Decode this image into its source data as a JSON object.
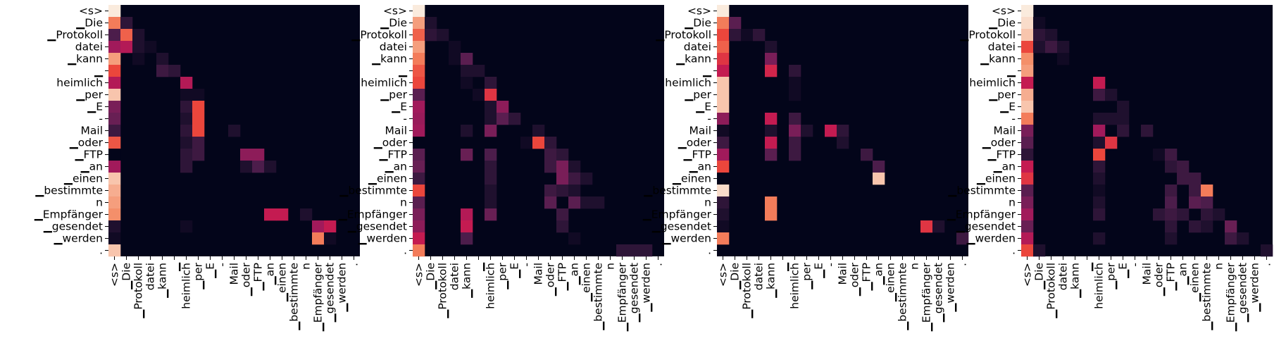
{
  "chart_data": {
    "type": "heatmap",
    "description_colormap": "rocket",
    "tokens": [
      "<s>",
      "▁Die",
      "▁Protokoll",
      "datei",
      "▁kann",
      "▁",
      "heimlich",
      "▁per",
      "▁E",
      "-",
      "Mail",
      "▁oder",
      "▁FTP",
      "▁an",
      "▁einen",
      "▁bestimmte",
      "n",
      "▁Empfänger",
      "▁gesendet",
      "▁werden",
      "."
    ],
    "x_tick_labels": [
      "<s>",
      "▁Die",
      "▁Protokoll",
      "datei",
      "▁kann",
      "▁",
      "heimlich",
      "▁per",
      "▁E",
      "-",
      "Mail",
      "▁oder",
      "▁FTP",
      "▁an",
      "▁einen",
      "▁bestimmte",
      "n",
      "▁Empfänger",
      "▁gesendet",
      "▁werden",
      "."
    ],
    "y_tick_labels": [
      "<s>",
      "▁Die",
      "▁Protokoll",
      "datei",
      "▁kann",
      "▁",
      "heimlich",
      "▁per",
      "▁E",
      "-",
      "Mail",
      "▁oder",
      "▁FTP",
      "▁an",
      "▁einen",
      "▁bestimmte",
      "n",
      "▁Empfänger",
      "▁gesendet",
      "▁werden",
      "."
    ],
    "panels": [
      {
        "cells": [
          [
            0,
            0,
            1.0
          ],
          [
            1,
            0,
            0.85
          ],
          [
            1,
            1,
            0.15
          ],
          [
            2,
            0,
            0.25
          ],
          [
            2,
            1,
            0.8
          ],
          [
            2,
            2,
            0.1
          ],
          [
            3,
            0,
            0.5
          ],
          [
            3,
            1,
            0.55
          ],
          [
            3,
            2,
            0.1
          ],
          [
            3,
            3,
            0.05
          ],
          [
            4,
            0,
            0.9
          ],
          [
            4,
            2,
            0.05
          ],
          [
            4,
            4,
            0.1
          ],
          [
            5,
            0,
            0.75
          ],
          [
            5,
            4,
            0.2
          ],
          [
            5,
            5,
            0.15
          ],
          [
            6,
            0,
            0.55
          ],
          [
            6,
            6,
            0.55
          ],
          [
            7,
            0,
            0.95
          ],
          [
            7,
            6,
            0.05
          ],
          [
            7,
            7,
            0.05
          ],
          [
            8,
            0,
            0.4
          ],
          [
            8,
            6,
            0.15
          ],
          [
            8,
            7,
            0.75
          ],
          [
            9,
            0,
            0.35
          ],
          [
            9,
            6,
            0.1
          ],
          [
            9,
            7,
            0.75
          ],
          [
            10,
            0,
            0.2
          ],
          [
            10,
            6,
            0.15
          ],
          [
            10,
            7,
            0.75
          ],
          [
            10,
            10,
            0.1
          ],
          [
            11,
            0,
            0.78
          ],
          [
            11,
            6,
            0.1
          ],
          [
            11,
            7,
            0.2
          ],
          [
            12,
            0,
            0.0
          ],
          [
            12,
            6,
            0.15
          ],
          [
            12,
            7,
            0.2
          ],
          [
            12,
            11,
            0.45
          ],
          [
            12,
            12,
            0.45
          ],
          [
            13,
            0,
            0.5
          ],
          [
            13,
            6,
            0.15
          ],
          [
            13,
            11,
            0.1
          ],
          [
            13,
            12,
            0.25
          ],
          [
            13,
            13,
            0.1
          ],
          [
            14,
            0,
            0.95
          ],
          [
            15,
            0,
            0.92
          ],
          [
            16,
            0,
            0.9
          ],
          [
            17,
            0,
            0.88
          ],
          [
            17,
            13,
            0.6
          ],
          [
            17,
            14,
            0.6
          ],
          [
            17,
            16,
            0.1
          ],
          [
            18,
            0,
            0.1
          ],
          [
            18,
            6,
            0.05
          ],
          [
            18,
            17,
            0.5
          ],
          [
            18,
            18,
            0.6
          ],
          [
            19,
            0,
            0.05
          ],
          [
            19,
            17,
            0.85
          ],
          [
            19,
            18,
            0.05
          ],
          [
            20,
            0,
            0.95
          ]
        ]
      },
      {
        "cells": [
          [
            0,
            0,
            1.0
          ],
          [
            1,
            0,
            0.9
          ],
          [
            1,
            1,
            0.1
          ],
          [
            2,
            0,
            0.8
          ],
          [
            2,
            1,
            0.15
          ],
          [
            2,
            2,
            0.1
          ],
          [
            3,
            0,
            0.9
          ],
          [
            3,
            3,
            0.05
          ],
          [
            4,
            0,
            0.85
          ],
          [
            4,
            3,
            0.05
          ],
          [
            4,
            4,
            0.3
          ],
          [
            5,
            0,
            0.78
          ],
          [
            5,
            4,
            0.1
          ],
          [
            5,
            5,
            0.1
          ],
          [
            6,
            0,
            0.75
          ],
          [
            6,
            4,
            0.05
          ],
          [
            6,
            6,
            0.15
          ],
          [
            7,
            0,
            0.3
          ],
          [
            7,
            5,
            0.05
          ],
          [
            7,
            6,
            0.7
          ],
          [
            8,
            0,
            0.5
          ],
          [
            8,
            6,
            0.1
          ],
          [
            8,
            7,
            0.45
          ],
          [
            9,
            0,
            0.48
          ],
          [
            9,
            6,
            0.1
          ],
          [
            9,
            7,
            0.3
          ],
          [
            9,
            8,
            0.15
          ],
          [
            10,
            0,
            0.5
          ],
          [
            10,
            4,
            0.1
          ],
          [
            10,
            6,
            0.4
          ],
          [
            10,
            10,
            0.1
          ],
          [
            11,
            0,
            0.0
          ],
          [
            11,
            9,
            0.05
          ],
          [
            11,
            10,
            0.75
          ],
          [
            11,
            11,
            0.15
          ],
          [
            12,
            0,
            0.3
          ],
          [
            12,
            4,
            0.35
          ],
          [
            12,
            6,
            0.25
          ],
          [
            12,
            11,
            0.2
          ],
          [
            12,
            12,
            0.15
          ],
          [
            13,
            0,
            0.35
          ],
          [
            13,
            6,
            0.15
          ],
          [
            13,
            11,
            0.2
          ],
          [
            13,
            12,
            0.4
          ],
          [
            13,
            13,
            0.1
          ],
          [
            14,
            0,
            0.2
          ],
          [
            14,
            6,
            0.15
          ],
          [
            14,
            12,
            0.4
          ],
          [
            14,
            13,
            0.2
          ],
          [
            14,
            14,
            0.1
          ],
          [
            15,
            0,
            0.75
          ],
          [
            15,
            6,
            0.1
          ],
          [
            15,
            11,
            0.2
          ],
          [
            15,
            12,
            0.15
          ],
          [
            15,
            13,
            0.1
          ],
          [
            16,
            0,
            0.3
          ],
          [
            16,
            6,
            0.1
          ],
          [
            16,
            11,
            0.3
          ],
          [
            16,
            13,
            0.3
          ],
          [
            16,
            14,
            0.1
          ],
          [
            16,
            15,
            0.1
          ],
          [
            17,
            0,
            0.4
          ],
          [
            17,
            4,
            0.55
          ],
          [
            17,
            6,
            0.35
          ],
          [
            17,
            12,
            0.2
          ],
          [
            18,
            0,
            0.45
          ],
          [
            18,
            4,
            0.6
          ],
          [
            18,
            12,
            0.15
          ],
          [
            19,
            0,
            0.6
          ],
          [
            19,
            4,
            0.25
          ],
          [
            19,
            13,
            0.05
          ],
          [
            20,
            0,
            0.85
          ],
          [
            20,
            17,
            0.15
          ],
          [
            20,
            18,
            0.15
          ],
          [
            20,
            19,
            0.15
          ]
        ]
      },
      {
        "cells": [
          [
            0,
            0,
            1.0
          ],
          [
            1,
            0,
            0.85
          ],
          [
            1,
            1,
            0.3
          ],
          [
            2,
            0,
            0.75
          ],
          [
            2,
            1,
            0.15
          ],
          [
            2,
            2,
            0.05
          ],
          [
            2,
            3,
            0.15
          ],
          [
            3,
            0,
            0.8
          ],
          [
            3,
            4,
            0.1
          ],
          [
            4,
            0,
            0.7
          ],
          [
            4,
            4,
            0.4
          ],
          [
            5,
            0,
            0.6
          ],
          [
            5,
            4,
            0.65
          ],
          [
            5,
            6,
            0.15
          ],
          [
            6,
            0,
            0.95
          ],
          [
            6,
            6,
            0.05
          ],
          [
            7,
            0,
            0.95
          ],
          [
            7,
            6,
            0.05
          ],
          [
            8,
            0,
            0.95
          ],
          [
            9,
            0,
            0.45
          ],
          [
            9,
            4,
            0.6
          ],
          [
            9,
            6,
            0.2
          ],
          [
            10,
            0,
            0.05
          ],
          [
            10,
            4,
            0.1
          ],
          [
            10,
            6,
            0.4
          ],
          [
            10,
            7,
            0.1
          ],
          [
            10,
            9,
            0.6
          ],
          [
            10,
            10,
            0.15
          ],
          [
            11,
            0,
            0.2
          ],
          [
            11,
            4,
            0.6
          ],
          [
            11,
            6,
            0.2
          ],
          [
            11,
            10,
            0.1
          ],
          [
            12,
            0,
            0.5
          ],
          [
            12,
            4,
            0.3
          ],
          [
            12,
            6,
            0.2
          ],
          [
            12,
            12,
            0.2
          ],
          [
            13,
            0,
            0.75
          ],
          [
            13,
            13,
            0.25
          ],
          [
            14,
            0,
            0.0
          ],
          [
            14,
            13,
            0.95
          ],
          [
            15,
            0,
            0.98
          ],
          [
            16,
            0,
            0.15
          ],
          [
            16,
            4,
            0.85
          ],
          [
            17,
            0,
            0.1
          ],
          [
            17,
            4,
            0.85
          ],
          [
            18,
            0,
            0.05
          ],
          [
            18,
            17,
            0.7
          ],
          [
            18,
            18,
            0.1
          ],
          [
            19,
            0,
            0.85
          ],
          [
            19,
            20,
            0.2
          ]
        ]
      },
      {
        "cells": [
          [
            0,
            0,
            1.0
          ],
          [
            1,
            0,
            0.98
          ],
          [
            1,
            1,
            0.05
          ],
          [
            2,
            0,
            0.95
          ],
          [
            2,
            1,
            0.15
          ],
          [
            2,
            2,
            0.1
          ],
          [
            3,
            0,
            0.75
          ],
          [
            3,
            1,
            0.1
          ],
          [
            3,
            2,
            0.2
          ],
          [
            3,
            3,
            0.1
          ],
          [
            4,
            0,
            0.88
          ],
          [
            4,
            3,
            0.05
          ],
          [
            5,
            0,
            0.9
          ],
          [
            6,
            0,
            0.6
          ],
          [
            6,
            6,
            0.6
          ],
          [
            7,
            0,
            0.92
          ],
          [
            7,
            6,
            0.2
          ],
          [
            7,
            7,
            0.1
          ],
          [
            8,
            0,
            0.95
          ],
          [
            8,
            8,
            0.1
          ],
          [
            9,
            0,
            0.85
          ],
          [
            9,
            6,
            0.1
          ],
          [
            9,
            7,
            0.1
          ],
          [
            9,
            8,
            0.1
          ],
          [
            10,
            0,
            0.4
          ],
          [
            10,
            6,
            0.5
          ],
          [
            10,
            8,
            0.15
          ],
          [
            10,
            10,
            0.15
          ],
          [
            11,
            0,
            0.3
          ],
          [
            11,
            6,
            0.1
          ],
          [
            11,
            7,
            0.7
          ],
          [
            12,
            0,
            0.15
          ],
          [
            12,
            6,
            0.75
          ],
          [
            12,
            11,
            0.05
          ],
          [
            12,
            12,
            0.2
          ],
          [
            13,
            0,
            0.6
          ],
          [
            13,
            6,
            0.15
          ],
          [
            13,
            12,
            0.15
          ],
          [
            13,
            13,
            0.2
          ],
          [
            14,
            0,
            0.7
          ],
          [
            14,
            6,
            0.1
          ],
          [
            14,
            13,
            0.2
          ],
          [
            14,
            14,
            0.2
          ],
          [
            15,
            0,
            0.3
          ],
          [
            15,
            6,
            0.05
          ],
          [
            15,
            12,
            0.2
          ],
          [
            15,
            14,
            0.2
          ],
          [
            15,
            15,
            0.85
          ],
          [
            16,
            0,
            0.4
          ],
          [
            16,
            6,
            0.1
          ],
          [
            16,
            12,
            0.25
          ],
          [
            16,
            14,
            0.3
          ],
          [
            16,
            15,
            0.25
          ],
          [
            17,
            0,
            0.5
          ],
          [
            17,
            6,
            0.15
          ],
          [
            17,
            11,
            0.15
          ],
          [
            17,
            12,
            0.2
          ],
          [
            17,
            13,
            0.15
          ],
          [
            17,
            15,
            0.15
          ],
          [
            17,
            16,
            0.1
          ],
          [
            18,
            0,
            0.35
          ],
          [
            18,
            12,
            0.15
          ],
          [
            18,
            14,
            0.15
          ],
          [
            18,
            15,
            0.1
          ],
          [
            18,
            17,
            0.35
          ],
          [
            19,
            0,
            0.55
          ],
          [
            19,
            6,
            0.1
          ],
          [
            19,
            12,
            0.1
          ],
          [
            19,
            17,
            0.2
          ],
          [
            19,
            18,
            0.1
          ],
          [
            20,
            0,
            0.75
          ],
          [
            20,
            1,
            0.1
          ],
          [
            20,
            20,
            0.1
          ]
        ]
      }
    ]
  }
}
